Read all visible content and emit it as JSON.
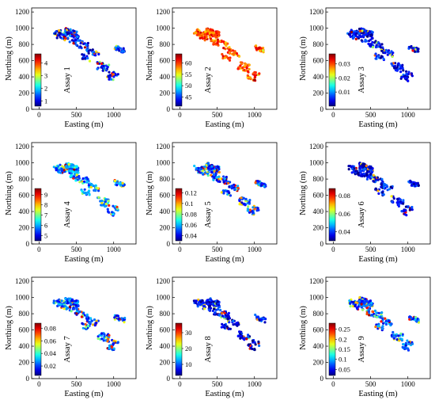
{
  "chart_data": [
    {
      "type": "scatter",
      "xlabel": "Easting (m)",
      "ylabel": "Northing (m)",
      "colorbar_label": "Assay 1",
      "colormap": "jet",
      "xlim": [
        -100,
        1300
      ],
      "ylim": [
        0,
        1250
      ],
      "xticks": [
        "0",
        "500",
        "1000"
      ],
      "yticks": [
        "0",
        "200",
        "400",
        "600",
        "800",
        "1000",
        "1200"
      ],
      "colorbar_ticks": [
        "1",
        "2",
        "3",
        "4"
      ],
      "colorbar_range": [
        0.6,
        4.7
      ]
    },
    {
      "type": "scatter",
      "xlabel": "Easting (m)",
      "ylabel": "Northing (m)",
      "colorbar_label": "Assay 2",
      "colormap": "jet",
      "xlim": [
        -100,
        1300
      ],
      "ylim": [
        0,
        1250
      ],
      "xticks": [
        "0",
        "500",
        "1000"
      ],
      "yticks": [
        "0",
        "200",
        "400",
        "600",
        "800",
        "1000",
        "1200"
      ],
      "colorbar_ticks": [
        "45",
        "50",
        "55",
        "60"
      ],
      "colorbar_range": [
        41,
        64
      ]
    },
    {
      "type": "scatter",
      "xlabel": "Easting (m)",
      "ylabel": "Northing (m)",
      "colorbar_label": "Assay 3",
      "colormap": "jet",
      "xlim": [
        -100,
        1300
      ],
      "ylim": [
        0,
        1250
      ],
      "xticks": [
        "0",
        "500",
        "1000"
      ],
      "yticks": [
        "0",
        "200",
        "400",
        "600",
        "800",
        "1000",
        "1200"
      ],
      "colorbar_ticks": [
        "0.01",
        "0.02",
        "0.03"
      ],
      "colorbar_range": [
        0.0,
        0.037
      ]
    },
    {
      "type": "scatter",
      "xlabel": "Easting (m)",
      "ylabel": "Northing (m)",
      "colorbar_label": "Assay 4",
      "colormap": "jet",
      "xlim": [
        -100,
        1300
      ],
      "ylim": [
        0,
        1250
      ],
      "xticks": [
        "0",
        "500",
        "1000"
      ],
      "yticks": [
        "0",
        "200",
        "400",
        "600",
        "800",
        "1000",
        "1200"
      ],
      "colorbar_ticks": [
        "5",
        "6",
        "7",
        "8",
        "9"
      ],
      "colorbar_range": [
        4.5,
        9.6
      ]
    },
    {
      "type": "scatter",
      "xlabel": "Easting (m)",
      "ylabel": "Northing (m)",
      "colorbar_label": "Assay 5",
      "colormap": "jet",
      "xlim": [
        -100,
        1300
      ],
      "ylim": [
        0,
        1250
      ],
      "xticks": [
        "0",
        "500",
        "1000"
      ],
      "yticks": [
        "0",
        "200",
        "400",
        "600",
        "800",
        "1000",
        "1200"
      ],
      "colorbar_ticks": [
        "0.04",
        "0.06",
        "0.08",
        "0.1",
        "0.12"
      ],
      "colorbar_range": [
        0.03,
        0.128
      ]
    },
    {
      "type": "scatter",
      "xlabel": "Easting (m)",
      "ylabel": "Northing (m)",
      "colorbar_label": "Assay 6",
      "colormap": "jet",
      "xlim": [
        -100,
        1300
      ],
      "ylim": [
        0,
        1250
      ],
      "xticks": [
        "0",
        "500",
        "1000"
      ],
      "yticks": [
        "0",
        "200",
        "400",
        "600",
        "800",
        "1000",
        "1200"
      ],
      "colorbar_ticks": [
        "0.04",
        "0.06",
        "0.08"
      ],
      "colorbar_range": [
        0.03,
        0.088
      ]
    },
    {
      "type": "scatter",
      "xlabel": "Easting (m)",
      "ylabel": "Northing (m)",
      "colorbar_label": "Assay 7",
      "colormap": "jet",
      "xlim": [
        -100,
        1300
      ],
      "ylim": [
        0,
        1250
      ],
      "xticks": [
        "0",
        "500",
        "1000"
      ],
      "yticks": [
        "0",
        "200",
        "400",
        "600",
        "800",
        "1000",
        "1200"
      ],
      "colorbar_ticks": [
        "0.02",
        "0.04",
        "0.06",
        "0.08"
      ],
      "colorbar_range": [
        0.005,
        0.088
      ]
    },
    {
      "type": "scatter",
      "xlabel": "Easting (m)",
      "ylabel": "Northing (m)",
      "colorbar_label": "Assay 8",
      "colormap": "jet",
      "xlim": [
        -100,
        1300
      ],
      "ylim": [
        0,
        1250
      ],
      "xticks": [
        "0",
        "500",
        "1000"
      ],
      "yticks": [
        "0",
        "200",
        "400",
        "600",
        "800",
        "1000",
        "1200"
      ],
      "colorbar_ticks": [
        "10",
        "20",
        "30"
      ],
      "colorbar_range": [
        3,
        36
      ]
    },
    {
      "type": "scatter",
      "xlabel": "Easting (m)",
      "ylabel": "Northing (m)",
      "colorbar_label": "Assay 9",
      "colormap": "jet",
      "xlim": [
        -100,
        1300
      ],
      "ylim": [
        0,
        1250
      ],
      "xticks": [
        "0",
        "500",
        "1000"
      ],
      "yticks": [
        "0",
        "200",
        "400",
        "600",
        "800",
        "1000",
        "1200"
      ],
      "colorbar_ticks": [
        "0.05",
        "0.1",
        "0.15",
        "0.2",
        "0.25"
      ],
      "colorbar_range": [
        0.02,
        0.28
      ]
    }
  ]
}
